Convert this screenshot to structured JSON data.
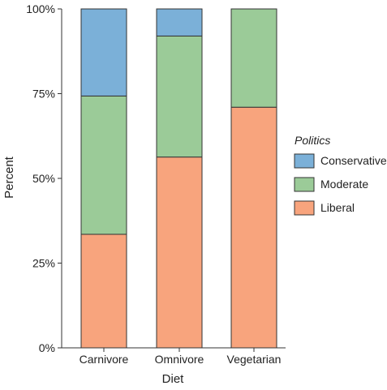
{
  "chart_data": {
    "type": "bar",
    "stacked": true,
    "percent_stacked": true,
    "xlabel": "Diet",
    "ylabel": "Percent",
    "categories": [
      "Carnivore",
      "Omnivore",
      "Vegetarian"
    ],
    "series": [
      {
        "name": "Liberal",
        "values": [
          33.5,
          56.3,
          71.0
        ],
        "color": "#F8A47D"
      },
      {
        "name": "Moderate",
        "values": [
          40.8,
          35.7,
          29.0
        ],
        "color": "#9BCB98"
      },
      {
        "name": "Conservative",
        "values": [
          25.7,
          8.0,
          0.0
        ],
        "color": "#7BB0D8"
      }
    ],
    "ylim": [
      0,
      100
    ],
    "yticks": [
      "0%",
      "25%",
      "50%",
      "75%",
      "100%"
    ],
    "legend": {
      "title": "Politics",
      "position": "right",
      "order": [
        "Conservative",
        "Moderate",
        "Liberal"
      ]
    },
    "grid": false
  }
}
